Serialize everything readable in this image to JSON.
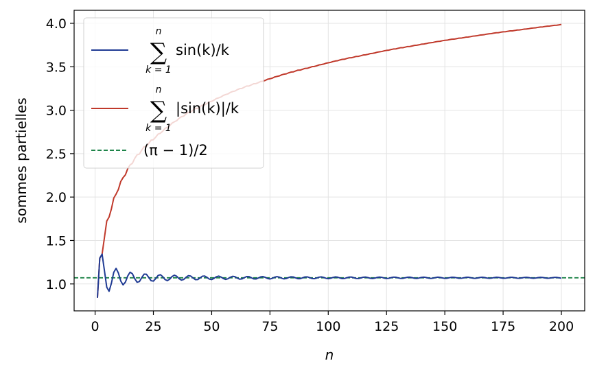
{
  "chart_data": {
    "type": "line",
    "title": "",
    "xlabel": "n",
    "ylabel": "sommes partielles",
    "xlim": [
      -9,
      210
    ],
    "ylim": [
      0.69,
      4.15
    ],
    "xticks": [
      0,
      25,
      50,
      75,
      100,
      125,
      150,
      175,
      200
    ],
    "yticks": [
      1.0,
      1.5,
      2.0,
      2.5,
      3.0,
      3.5,
      4.0
    ],
    "xtick_labels": [
      "0",
      "25",
      "50",
      "75",
      "100",
      "125",
      "150",
      "175",
      "200"
    ],
    "ytick_labels": [
      "1.0",
      "1.5",
      "2.0",
      "2.5",
      "3.0",
      "3.5",
      "4.0"
    ],
    "grid": true,
    "legend_position": "top-left",
    "n_min": 1,
    "n_max": 200,
    "series": [
      {
        "legend_sum_top": "n",
        "legend_sum_sigma": "∑",
        "legend_sum_bottom": "k = 1",
        "legend_term": "sin(k)/k",
        "color": "#1f3a93",
        "style": "solid",
        "formula": "partial_sum_sin"
      },
      {
        "legend_sum_top": "n",
        "legend_sum_sigma": "∑",
        "legend_sum_bottom": "k = 1",
        "legend_term": "|sin(k)|/k",
        "color": "#c0392b",
        "style": "solid",
        "formula": "partial_sum_abs_sin"
      },
      {
        "legend_term": "(π − 1)/2",
        "color": "#1e8449",
        "style": "dashed",
        "constant": 1.0708
      }
    ]
  }
}
